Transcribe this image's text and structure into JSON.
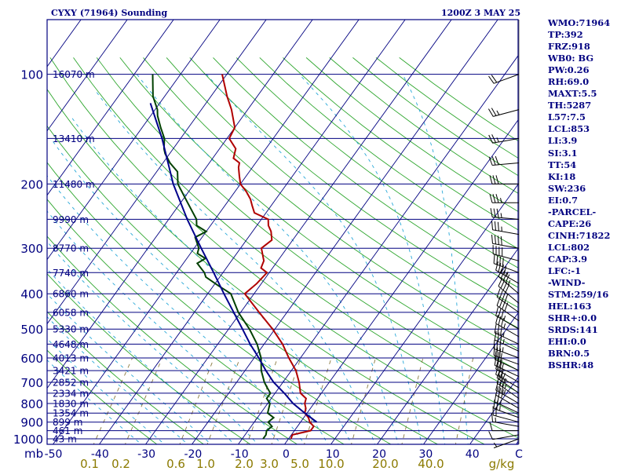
{
  "header": {
    "station": "CYXY (71964) Sounding",
    "time": "1200Z  3 MAY 25"
  },
  "indices": [
    "WMO:71964",
    "TP:392",
    "FRZ:918",
    "WB0: BG",
    "PW:0.26",
    "RH:69.0",
    "MAXT:5.5",
    "TH:5287",
    "L57:7.5",
    "LCL:853",
    "LI:3.9",
    "SI:3.1",
    "TT:54",
    "KI:18",
    "SW:236",
    "EI:0.7",
    "-PARCEL-",
    "CAPE:26",
    "CINH:71822",
    "LCL:802",
    "CAP:3.9",
    "LFC:-1",
    "-WIND-",
    "STM:259/16",
    "HEL:163",
    "SHR+:0.0",
    "SRDS:141",
    "EHI:0.0",
    "BRN:0.5",
    "BSHR:48"
  ],
  "chart_data": {
    "type": "skew-t",
    "pressure_levels": [
      100,
      200,
      300,
      400,
      500,
      600,
      700,
      800,
      900,
      1000
    ],
    "height_labels": [
      {
        "p": 100,
        "label": "16070 m"
      },
      {
        "p": 150,
        "label": "13410 m"
      },
      {
        "p": 200,
        "label": "11480 m"
      },
      {
        "p": 250,
        "label": "9990 m"
      },
      {
        "p": 300,
        "label": "8770 m"
      },
      {
        "p": 350,
        "label": "7740 m"
      },
      {
        "p": 400,
        "label": "6860 m"
      },
      {
        "p": 450,
        "label": "6058 m"
      },
      {
        "p": 500,
        "label": "5330 m"
      },
      {
        "p": 550,
        "label": "4648 m"
      },
      {
        "p": 600,
        "label": "4013 m"
      },
      {
        "p": 650,
        "label": "3421 m"
      },
      {
        "p": 700,
        "label": "2852 m"
      },
      {
        "p": 750,
        "label": "2334 m"
      },
      {
        "p": 800,
        "label": "1830 m"
      },
      {
        "p": 850,
        "label": "1354 m"
      },
      {
        "p": 900,
        "label": "899 m"
      },
      {
        "p": 950,
        "label": "461 m"
      },
      {
        "p": 1000,
        "label": "43 m"
      }
    ],
    "temperature_ticks": [
      "-50",
      "-40",
      "-30",
      "-20",
      "-10",
      "0",
      "10",
      "20",
      "30",
      "40",
      "C"
    ],
    "mixing_ratio_labels": [
      "0.1",
      "0.2",
      "0.6",
      "1.0",
      "2.0",
      "3.0",
      "5.0",
      "10.0",
      "20.0",
      "40.0",
      "g/kg"
    ],
    "series": [
      {
        "name": "temperature",
        "color": "#b00000",
        "points": [
          [
            1000,
            0.5
          ],
          [
            975,
            0.2
          ],
          [
            950,
            3.5
          ],
          [
            925,
            3.5
          ],
          [
            900,
            2.0
          ],
          [
            875,
            1.0
          ],
          [
            850,
            -0.5
          ],
          [
            825,
            -1.0
          ],
          [
            800,
            -2.0
          ],
          [
            775,
            -2.5
          ],
          [
            750,
            -4.5
          ],
          [
            700,
            -6.5
          ],
          [
            650,
            -9.0
          ],
          [
            600,
            -12.5
          ],
          [
            550,
            -16.0
          ],
          [
            500,
            -20.5
          ],
          [
            450,
            -26.0
          ],
          [
            400,
            -32.0
          ],
          [
            375,
            -31.0
          ],
          [
            350,
            -30.5
          ],
          [
            340,
            -32.5
          ],
          [
            325,
            -33.0
          ],
          [
            300,
            -35.5
          ],
          [
            285,
            -34.5
          ],
          [
            270,
            -36.0
          ],
          [
            260,
            -37.5
          ],
          [
            250,
            -38.5
          ],
          [
            240,
            -42.5
          ],
          [
            230,
            -44.0
          ],
          [
            220,
            -45.5
          ],
          [
            210,
            -47.5
          ],
          [
            200,
            -50.0
          ],
          [
            190,
            -51.5
          ],
          [
            180,
            -53.0
          ],
          [
            175,
            -53.5
          ],
          [
            170,
            -55.5
          ],
          [
            160,
            -56.5
          ],
          [
            150,
            -59.5
          ],
          [
            140,
            -60.0
          ],
          [
            125,
            -63.5
          ],
          [
            115,
            -66.5
          ],
          [
            100,
            -71.0
          ]
        ]
      },
      {
        "name": "dewpoint",
        "color": "#004000",
        "points": [
          [
            1000,
            -5.5
          ],
          [
            975,
            -5.5
          ],
          [
            950,
            -6.0
          ],
          [
            925,
            -5.5
          ],
          [
            900,
            -7.0
          ],
          [
            875,
            -6.5
          ],
          [
            850,
            -8.5
          ],
          [
            825,
            -9.0
          ],
          [
            800,
            -9.5
          ],
          [
            775,
            -11.0
          ],
          [
            750,
            -11.0
          ],
          [
            725,
            -12.5
          ],
          [
            700,
            -14.0
          ],
          [
            650,
            -16.5
          ],
          [
            600,
            -18.5
          ],
          [
            550,
            -21.5
          ],
          [
            500,
            -25.5
          ],
          [
            450,
            -30.5
          ],
          [
            400,
            -35.0
          ],
          [
            380,
            -39.0
          ],
          [
            360,
            -43.0
          ],
          [
            350,
            -44.0
          ],
          [
            340,
            -45.5
          ],
          [
            330,
            -47.0
          ],
          [
            320,
            -46.0
          ],
          [
            310,
            -48.5
          ],
          [
            300,
            -49.0
          ],
          [
            280,
            -51.5
          ],
          [
            270,
            -50.0
          ],
          [
            260,
            -53.0
          ],
          [
            250,
            -54.0
          ],
          [
            225,
            -58.5
          ],
          [
            200,
            -63.5
          ],
          [
            185,
            -65.5
          ],
          [
            175,
            -68.5
          ],
          [
            165,
            -71.0
          ],
          [
            160,
            -72.0
          ],
          [
            150,
            -73.5
          ],
          [
            140,
            -76.0
          ],
          [
            130,
            -78.5
          ],
          [
            125,
            -79.5
          ],
          [
            115,
            -82.5
          ],
          [
            100,
            -86.0
          ]
        ]
      },
      {
        "name": "parcel",
        "color": "#00008b",
        "points": [
          [
            900,
            3.5
          ],
          [
            850,
            -0.5
          ],
          [
            800,
            -4.5
          ],
          [
            750,
            -8.0
          ],
          [
            700,
            -12.0
          ],
          [
            650,
            -15.5
          ],
          [
            600,
            -19.0
          ],
          [
            550,
            -23.0
          ],
          [
            500,
            -27.0
          ],
          [
            450,
            -31.5
          ],
          [
            400,
            -36.5
          ],
          [
            350,
            -42.0
          ],
          [
            300,
            -48.5
          ],
          [
            250,
            -56.0
          ],
          [
            200,
            -64.5
          ],
          [
            150,
            -74.0
          ],
          [
            120,
            -82.0
          ]
        ]
      }
    ],
    "wind_barbs": [
      {
        "p": 1000,
        "dir": 250,
        "spd": 5
      },
      {
        "p": 975,
        "dir": 260,
        "spd": 10
      },
      {
        "p": 950,
        "dir": 270,
        "spd": 10
      },
      {
        "p": 925,
        "dir": 280,
        "spd": 15
      },
      {
        "p": 900,
        "dir": 285,
        "spd": 20
      },
      {
        "p": 875,
        "dir": 290,
        "spd": 25
      },
      {
        "p": 850,
        "dir": 295,
        "spd": 25
      },
      {
        "p": 825,
        "dir": 300,
        "spd": 30
      },
      {
        "p": 800,
        "dir": 300,
        "spd": 35
      },
      {
        "p": 775,
        "dir": 305,
        "spd": 35
      },
      {
        "p": 750,
        "dir": 305,
        "spd": 35
      },
      {
        "p": 725,
        "dir": 300,
        "spd": 30
      },
      {
        "p": 700,
        "dir": 300,
        "spd": 30
      },
      {
        "p": 675,
        "dir": 295,
        "spd": 30
      },
      {
        "p": 650,
        "dir": 295,
        "spd": 30
      },
      {
        "p": 625,
        "dir": 290,
        "spd": 30
      },
      {
        "p": 600,
        "dir": 290,
        "spd": 35
      },
      {
        "p": 575,
        "dir": 295,
        "spd": 35
      },
      {
        "p": 550,
        "dir": 295,
        "spd": 35
      },
      {
        "p": 525,
        "dir": 300,
        "spd": 35
      },
      {
        "p": 500,
        "dir": 300,
        "spd": 35
      },
      {
        "p": 475,
        "dir": 305,
        "spd": 40
      },
      {
        "p": 450,
        "dir": 305,
        "spd": 40
      },
      {
        "p": 425,
        "dir": 310,
        "spd": 40
      },
      {
        "p": 400,
        "dir": 310,
        "spd": 45
      },
      {
        "p": 375,
        "dir": 300,
        "spd": 45
      },
      {
        "p": 350,
        "dir": 290,
        "spd": 40
      },
      {
        "p": 325,
        "dir": 285,
        "spd": 40
      },
      {
        "p": 300,
        "dir": 280,
        "spd": 40
      },
      {
        "p": 275,
        "dir": 280,
        "spd": 35
      },
      {
        "p": 250,
        "dir": 275,
        "spd": 35
      },
      {
        "p": 225,
        "dir": 270,
        "spd": 35
      },
      {
        "p": 200,
        "dir": 270,
        "spd": 30
      },
      {
        "p": 175,
        "dir": 265,
        "spd": 30
      },
      {
        "p": 150,
        "dir": 260,
        "spd": 25
      },
      {
        "p": 125,
        "dir": 255,
        "spd": 25
      },
      {
        "p": 100,
        "dir": 250,
        "spd": 20
      }
    ]
  }
}
